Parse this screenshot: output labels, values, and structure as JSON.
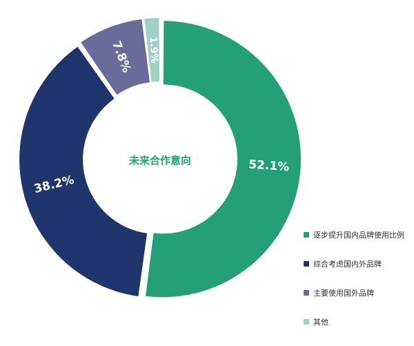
{
  "chart_data": {
    "type": "pie",
    "donut": true,
    "title": "未来合作意向",
    "categories": [
      "逐步提升国内品牌使用比例",
      "综合考虑国内外品牌",
      "主要使用国外品牌",
      "其他"
    ],
    "values": [
      52.1,
      38.2,
      7.8,
      1.9
    ],
    "data_labels": [
      "52.1%",
      "38.2%",
      "7.8%",
      "1.9%"
    ],
    "colors": [
      "#24a077",
      "#1f356c",
      "#6b6b9b",
      "#9ed0c4"
    ],
    "legend": "bottom-right"
  }
}
